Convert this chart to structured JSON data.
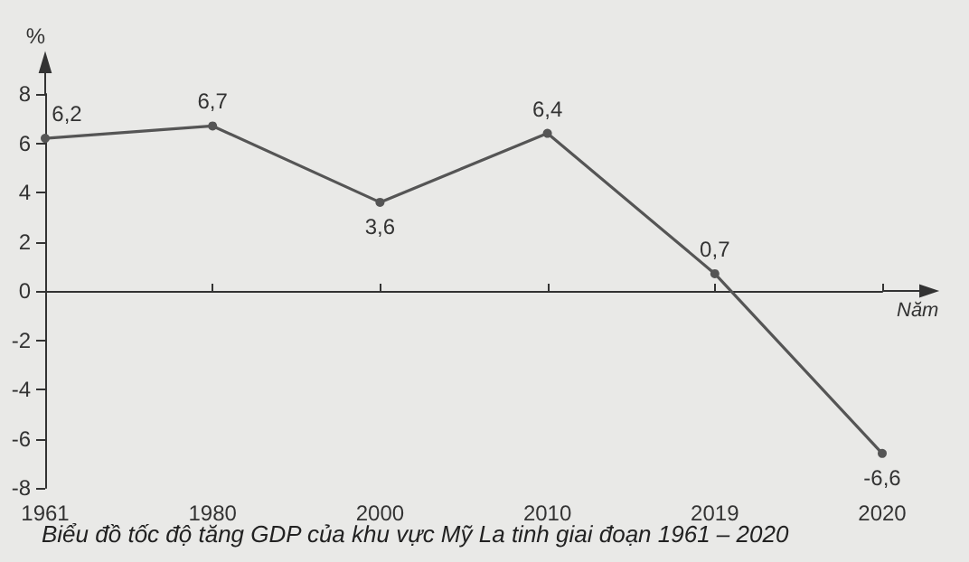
{
  "chart_data": {
    "type": "line",
    "title": "Biểu đồ tốc độ tăng GDP của khu vực Mỹ La tinh giai đoạn 1961 – 2020",
    "xlabel": "Năm",
    "ylabel": "%",
    "categories": [
      "1961",
      "1980",
      "2000",
      "2010",
      "2019",
      "2020"
    ],
    "series": [
      {
        "color": "#555555",
        "values": [
          6.2,
          6.7,
          3.6,
          6.4,
          0.7,
          -6.6
        ],
        "value_labels": [
          "6,2",
          "6,7",
          "3,6",
          "6,4",
          "0,7",
          "-6,6"
        ]
      }
    ],
    "ylim": [
      -8,
      8
    ],
    "yticks": [
      -8,
      -6,
      -4,
      -2,
      0,
      2,
      4,
      6,
      8
    ],
    "marker": "circle",
    "line_style": "solid"
  }
}
